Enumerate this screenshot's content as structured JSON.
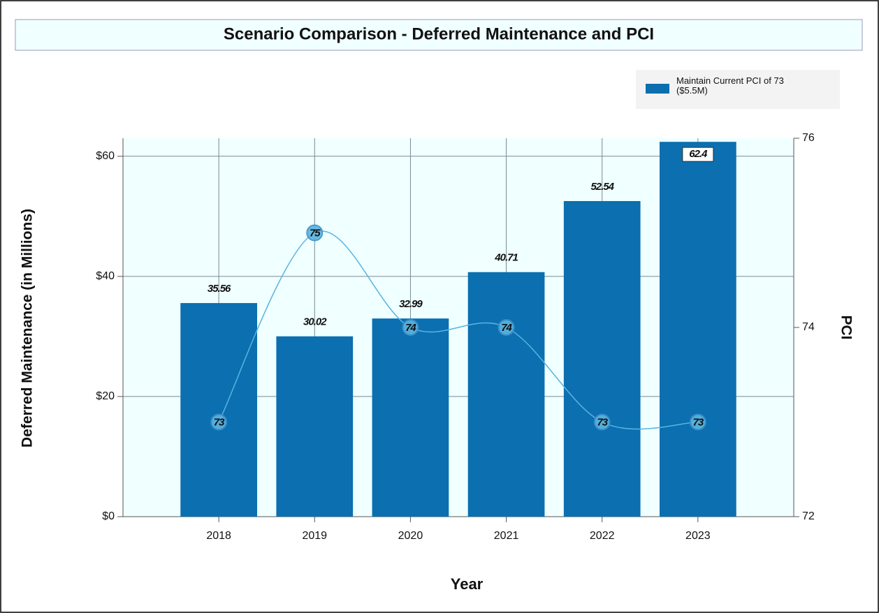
{
  "chart_data": {
    "type": "bar",
    "title": "Scenario Comparison - Deferred Maintenance and PCI",
    "xlabel": "Year",
    "ylabel": "Deferred Maintenance (in Millions)",
    "y2label": "PCI",
    "categories": [
      "2018",
      "2019",
      "2020",
      "2021",
      "2022",
      "2023"
    ],
    "series": [
      {
        "name": "Maintain Current PCI of 73 ($5.5M)",
        "type": "bar",
        "color": "#0b6fb0",
        "values": [
          35.56,
          30.02,
          32.99,
          40.71,
          52.54,
          62.4
        ]
      },
      {
        "type": "line",
        "axis": "y2",
        "color": "#5ab4e0",
        "values": [
          73,
          75,
          74,
          74,
          73,
          73
        ]
      }
    ],
    "ylim": [
      0,
      63
    ],
    "yticks": [
      {
        "value": 0,
        "label": "$0"
      },
      {
        "value": 20,
        "label": "$20"
      },
      {
        "value": 40,
        "label": "$40"
      },
      {
        "value": 60,
        "label": "$60"
      }
    ],
    "y2lim": [
      72,
      76
    ],
    "y2ticks": [
      72,
      74,
      76
    ],
    "grid": true,
    "legend": "top-right"
  }
}
